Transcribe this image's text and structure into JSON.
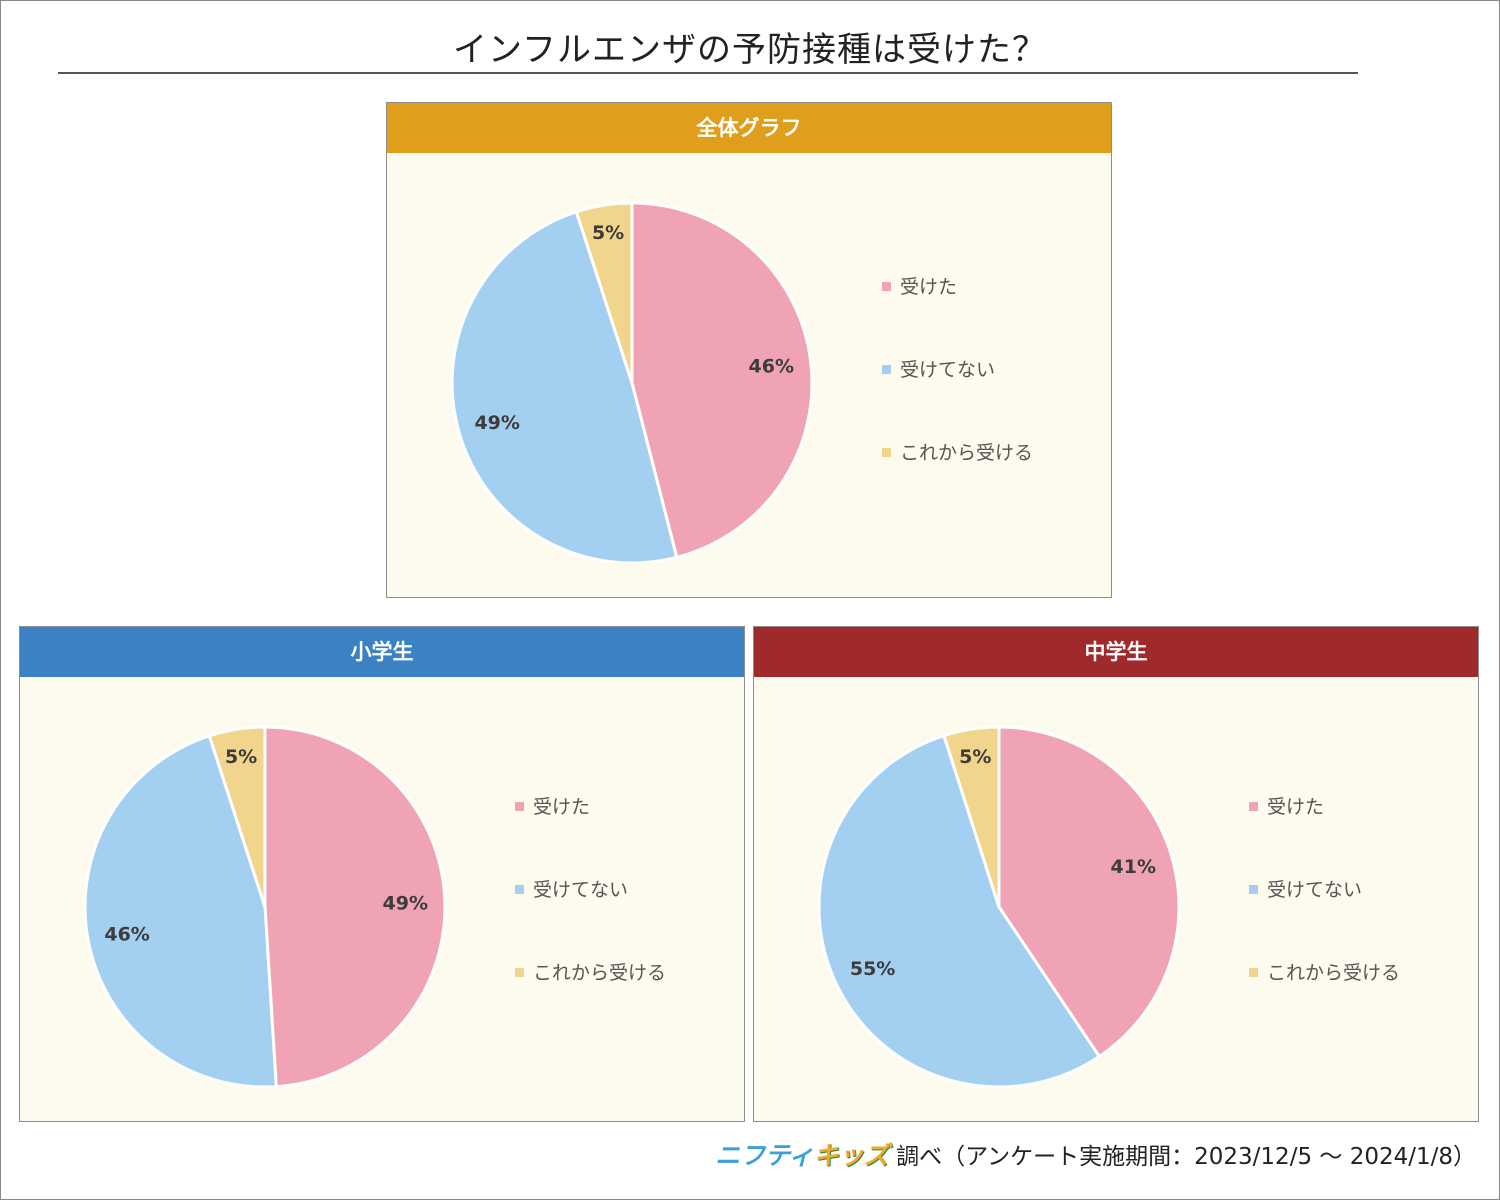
{
  "title": "インフルエンザの予防接種は受けた？",
  "colors": {
    "received": "#efa3b4",
    "not_received": "#a3d0f0",
    "will_receive": "#f2d58c",
    "panel_bg": "#fdfbee"
  },
  "chart_data": [
    {
      "type": "pie",
      "title": "全体グラフ",
      "header_color": "#df9e1b",
      "labels": [
        "受けた",
        "受けてない",
        "これから受ける"
      ],
      "values": [
        46,
        49,
        5
      ],
      "value_labels": [
        "46%",
        "49%",
        "5%"
      ]
    },
    {
      "type": "pie",
      "title": "小学生",
      "header_color": "#3b82c4",
      "labels": [
        "受けた",
        "受けてない",
        "これから受ける"
      ],
      "values": [
        49,
        46,
        5
      ],
      "value_labels": [
        "49%",
        "46%",
        "5%"
      ]
    },
    {
      "type": "pie",
      "title": "中学生",
      "header_color": "#a0292b",
      "labels": [
        "受けた",
        "受けてない",
        "これから受ける"
      ],
      "values": [
        41,
        55,
        5
      ],
      "value_labels": [
        "41%",
        "55%",
        "5%"
      ]
    }
  ],
  "source": {
    "brand_part1": "ニフティ",
    "brand_part2": "キッズ",
    "text": "調べ（アンケート実施期間：2023/12/5 ～ 2024/1/8）"
  }
}
